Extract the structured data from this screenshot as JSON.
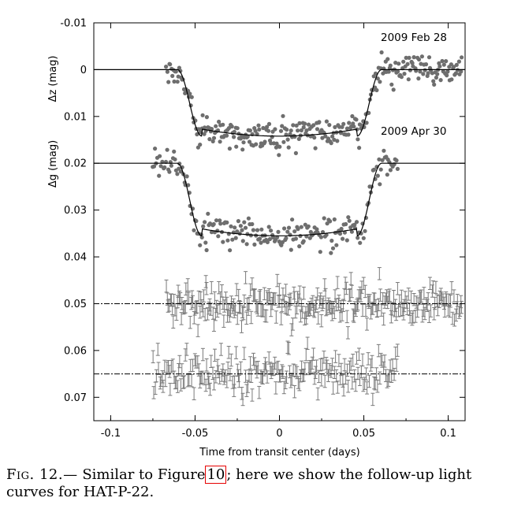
{
  "chart_data": {
    "type": "scatter",
    "xlabel": "Time from transit center (days)",
    "ylabel_top": "Δz (mag)",
    "ylabel_bottom": "Δg (mag)",
    "xlim": [
      -0.11,
      0.11
    ],
    "ylim": [
      -0.01,
      0.075
    ],
    "y_inverted": true,
    "x_ticks": [
      "-0.1",
      "-0.05",
      "0",
      "0.05",
      "0.1"
    ],
    "y_ticks": [
      "-0.01",
      "0",
      "0.01",
      "0.02",
      "0.03",
      "0.04",
      "0.05",
      "0.06",
      "0.07"
    ],
    "grid": false,
    "annotations": [
      "2009 Feb 28",
      "2009 Apr 30"
    ],
    "transit_model": {
      "t_first_contact": 0.0605,
      "t_second_contact": 0.046,
      "limb_darkening_curvature": 0.0015
    },
    "series": [
      {
        "kind": "light_curve",
        "annotation": "2009 Feb 28",
        "filter": "z",
        "baseline": 0.0,
        "depth": 0.0142,
        "x_range": [
          -0.067,
          0.108
        ],
        "n_points": 300,
        "scatter": 0.0016
      },
      {
        "kind": "light_curve",
        "annotation": "2009 Apr 30",
        "filter": "g",
        "baseline": 0.02,
        "depth": 0.0155,
        "x_range": [
          -0.075,
          0.07
        ],
        "n_points": 210,
        "scatter": 0.0018
      },
      {
        "kind": "residuals",
        "filter": "z",
        "baseline": 0.05,
        "x_range": [
          -0.067,
          0.108
        ],
        "n_points": 300,
        "scatter": 0.0022,
        "error_bar": 0.0013
      },
      {
        "kind": "residuals",
        "filter": "g",
        "baseline": 0.065,
        "x_range": [
          -0.075,
          0.07
        ],
        "n_points": 210,
        "scatter": 0.0022,
        "error_bar": 0.0013
      }
    ]
  },
  "caption": {
    "label": "Fig. 12.—",
    "text_before": "Similar to Figure",
    "ref": "10",
    "text_after": "; here we show the follow-up light curves for HAT-P-22."
  },
  "colors": {
    "points": "#6e6e6e",
    "error_bars": "#7a7a7a",
    "model": "#000000",
    "frame": "#000000",
    "ref_box": "#e60000"
  }
}
